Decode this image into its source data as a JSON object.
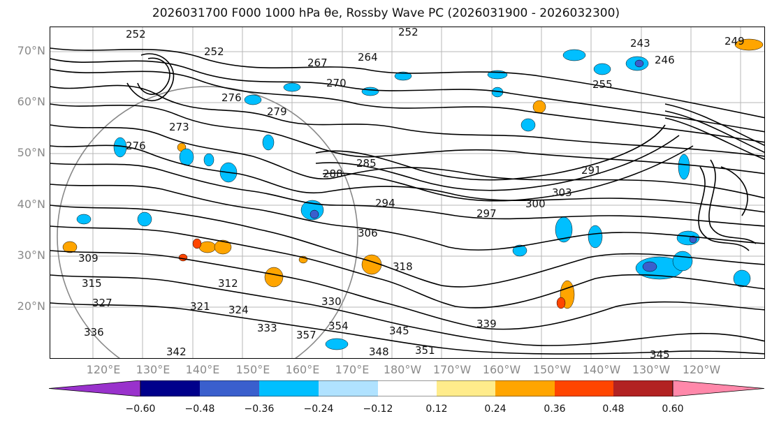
{
  "title": "2026031700 F000 1000 hPa θe, Rossby Wave PC (2026031900 - 2026032300)",
  "latitude_labels": [
    "70°N",
    "60°N",
    "50°N",
    "40°N",
    "30°N",
    "20°N"
  ],
  "longitude_labels": [
    "120°E",
    "130°E",
    "140°E",
    "150°E",
    "160°E",
    "170°E",
    "180°W",
    "170°W",
    "160°W",
    "150°W",
    "140°W",
    "130°W",
    "120°W"
  ],
  "contour_labels": [
    "252",
    "252",
    "252",
    "243",
    "249",
    "246",
    "264",
    "267",
    "270",
    "255",
    "276",
    "279",
    "273",
    "276",
    "285",
    "288",
    "294",
    "291",
    "297",
    "300",
    "303",
    "306",
    "309",
    "312",
    "318",
    "315",
    "321",
    "324",
    "327",
    "330",
    "333",
    "336",
    "339",
    "342",
    "345",
    "348",
    "351",
    "354",
    "357",
    "345"
  ],
  "colorbar": {
    "ticks": [
      "−0.60",
      "−0.48",
      "−0.36",
      "−0.24",
      "−0.12",
      "0.12",
      "0.24",
      "0.36",
      "0.48",
      "0.60"
    ],
    "colors": [
      "#9932cc",
      "#00008b",
      "#3a5fcd",
      "#00bfff",
      "#b0e2ff",
      "#ffffff",
      "#ffec8b",
      "#ffa500",
      "#ff4500",
      "#b22222",
      "#ff88aa"
    ]
  },
  "colors": {
    "positive": "#ffa500",
    "negative": "#00bfff",
    "contour": "#000000",
    "grid": "#808080"
  }
}
